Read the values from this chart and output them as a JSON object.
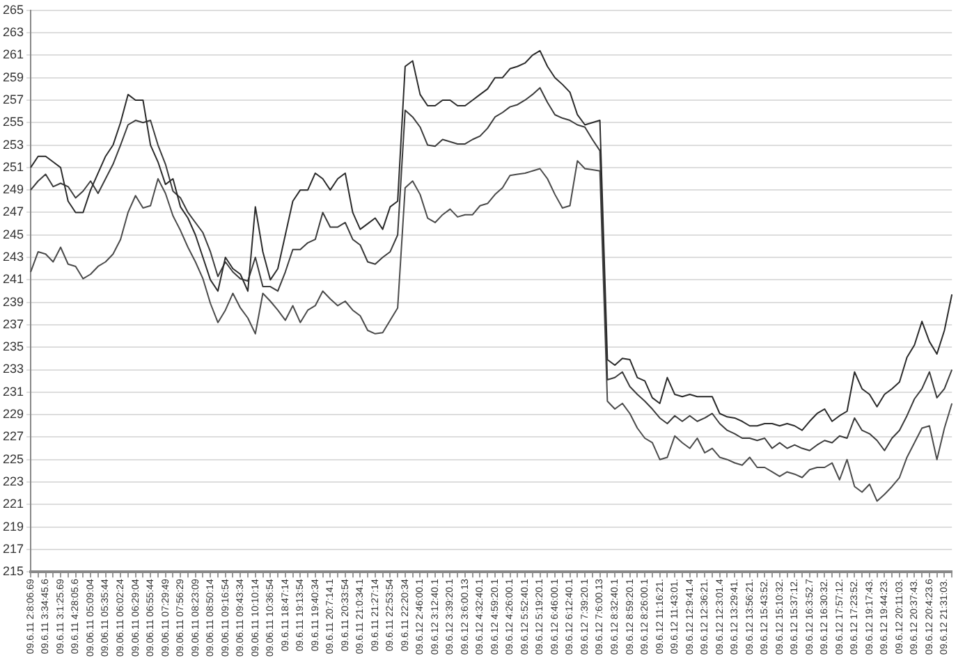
{
  "chart_data": {
    "type": "line",
    "categories": [
      "09.6.11 2:8:06.69",
      null,
      "09.6.11 3:34:45.6",
      null,
      "09.6.11 3:1:25.69",
      null,
      "09.6.11 4:28:05.6",
      null,
      "09.06.11 05:09:04",
      null,
      "09.06.11 05:35:44",
      null,
      "09.06.11 06:02:24",
      null,
      "09.06.11 06:29:04",
      null,
      "09.06.11 06:55:44",
      null,
      "09.06.11 07:29:49",
      null,
      "09.06.11 07:56:29",
      null,
      "09.06.11 08:23:09",
      null,
      "09.06.11 08:50:14",
      null,
      "09.06.11 09:16:54",
      null,
      "09.06.11 09:43:34",
      null,
      "09.06.11 10:10:14",
      null,
      "09.06.11 10:36:54",
      null,
      "09.6.11 18:47:14",
      null,
      "09.6.11 19:13:54",
      null,
      "09.6.11 19:40:34",
      null,
      "09.6.11 20:7:14.1",
      null,
      "09.6.11 20:33:54",
      null,
      "09.6.11 21:0:34.1",
      null,
      "09.6.11 21:27:14",
      null,
      "09.6.11 22:53:54",
      null,
      "09.6.11 22:20:34",
      null,
      "09.6.12 2:46:00.1",
      null,
      "09.6.12 3:12:40.1",
      null,
      "09.6.12 3:39:20.1",
      null,
      "09.6.12 3:6:00.13",
      null,
      "09.6.12 4:32:40.1",
      null,
      "09.6.12 4:59:20.1",
      null,
      "09.6.12 4:26:00.1",
      null,
      "09.6.12 5:52:40.1",
      null,
      "09.6.12 5:19:20.1",
      null,
      "09.6.12 6:46:00.1",
      null,
      "09.6.12 6:12:40.1",
      null,
      "09.6.12 7:39:20.1",
      null,
      "09.6.12 7:6:00.13",
      null,
      "09.6.12 8:32:40.1",
      null,
      "09.6.12 8:59:20.1",
      null,
      "09.6.12 8:26:00.1",
      null,
      "09.6.12 11:16:21.",
      null,
      "09.6.12 11:43:01.",
      null,
      "09.6.12 12:9:41.4",
      null,
      "09.6.12 12:36:21.",
      null,
      "09.6.12 12:3:01.4",
      null,
      "09.6.12 13:29:41.",
      null,
      "09.6.12 13:56:21.",
      null,
      "09.6.12 15:43:52.",
      null,
      "09.6.12 15:10:32.",
      null,
      "09.6.12 15:37:12.",
      null,
      "09.6.12 16:3:52.7",
      null,
      "09.6.12 16:30:32.",
      null,
      "09.6.12 17:57:12.",
      null,
      "09.6.12 17:23:52.",
      null,
      "09.6.12 19:17:43.",
      null,
      "09.6.12 19:44:23.",
      null,
      "09.6.12 20:11:03.",
      null,
      "09.6.12 20:37:43.",
      null,
      "09.6.12 20:4:23.6",
      null,
      "09.6.12 21:31:03.",
      null
    ],
    "series": [
      {
        "color": "#2a2a2a",
        "values": [
          251,
          252,
          252,
          251.5,
          251,
          248,
          247,
          247,
          249,
          250.5,
          252,
          253,
          255,
          257.5,
          257,
          257,
          253,
          251.5,
          249.5,
          250,
          247.5,
          246.5,
          245,
          243,
          241,
          240,
          243,
          242,
          241.5,
          240,
          247.5,
          243.5,
          241,
          242,
          245,
          248,
          249,
          249,
          250.5,
          250,
          249,
          250,
          250.5,
          247,
          245.5,
          246,
          246.5,
          245.5,
          247.5,
          248,
          260,
          260.5,
          257.5,
          256.5,
          256.5,
          257,
          257,
          256.5,
          256.5,
          257,
          257.5,
          258,
          259,
          259,
          259.8,
          260,
          260.3,
          261,
          261.4,
          260,
          259,
          258.4,
          257.7,
          255.7,
          254.8,
          255,
          255.2,
          233.9,
          233.4,
          234,
          233.9,
          232.3,
          232,
          230.5,
          230,
          232.3,
          230.8,
          230.6,
          230.8,
          230.6,
          230.6,
          230.6,
          229.1,
          228.8,
          228.7,
          228.4,
          228,
          228,
          228.2,
          228.2,
          228,
          228.2,
          228,
          227.6,
          228.4,
          229.1,
          229.5,
          228.4,
          228.9,
          229.3,
          232.8,
          231.3,
          230.8,
          229.7,
          230.8,
          231.3,
          231.9,
          234.1,
          235.2,
          237.3,
          235.5,
          234.4,
          236.5,
          239.7
        ]
      },
      {
        "color": "#3a3a3a",
        "values": [
          249,
          249.8,
          250.4,
          249.3,
          249.6,
          249.3,
          248.3,
          248.9,
          249.8,
          248.7,
          250,
          251.3,
          253,
          254.8,
          255.2,
          255,
          255.2,
          253,
          251.3,
          248.9,
          248.3,
          247,
          246.1,
          245.2,
          243.5,
          241.3,
          242.6,
          241.7,
          241.1,
          240.9,
          243,
          240.4,
          240.4,
          240,
          241.7,
          243.7,
          243.7,
          244.3,
          244.6,
          247,
          245.7,
          245.7,
          246.1,
          244.6,
          244.1,
          242.6,
          242.4,
          243,
          243.5,
          245,
          256.1,
          255.5,
          254.6,
          253,
          252.9,
          253.5,
          253.3,
          253.1,
          253.1,
          253.5,
          253.8,
          254.5,
          255.5,
          255.9,
          256.4,
          256.6,
          257,
          257.5,
          258.1,
          256.8,
          255.7,
          255.4,
          255.2,
          254.8,
          254.6,
          253.5,
          252.5,
          232.1,
          232.3,
          232.8,
          231.5,
          230.8,
          230.2,
          229.5,
          228.7,
          228.2,
          228.9,
          228.4,
          228.9,
          228.4,
          228.7,
          229.1,
          228.2,
          227.6,
          227.3,
          226.9,
          226.9,
          226.7,
          226.9,
          226,
          226.5,
          226,
          226.3,
          226,
          225.8,
          226.3,
          226.7,
          226.5,
          227.1,
          226.9,
          228.7,
          227.6,
          227.3,
          226.7,
          225.8,
          226.9,
          227.6,
          228.9,
          230.4,
          231.3,
          232.8,
          230.5,
          231.3,
          233
        ]
      },
      {
        "color": "#4a4a4a",
        "values": [
          241.7,
          243.5,
          243.3,
          242.6,
          243.9,
          242.4,
          242.2,
          241.1,
          241.5,
          242.2,
          242.6,
          243.3,
          244.6,
          247,
          248.5,
          247.4,
          247.6,
          250,
          248.7,
          246.7,
          245.4,
          243.9,
          242.6,
          241.1,
          238.9,
          237.2,
          238.3,
          239.8,
          238.5,
          237.6,
          236.2,
          239.8,
          239.1,
          238.3,
          237.4,
          238.7,
          237.2,
          238.3,
          238.7,
          240,
          239.3,
          238.7,
          239.1,
          238.3,
          237.8,
          236.5,
          236.2,
          236.3,
          237.4,
          238.5,
          249.2,
          249.8,
          248.6,
          246.5,
          246.1,
          246.8,
          247.3,
          246.6,
          246.8,
          246.8,
          247.6,
          247.8,
          248.6,
          249.2,
          250.3,
          250.4,
          250.5,
          250.7,
          250.9,
          250,
          248.6,
          247.4,
          247.6,
          251.6,
          250.9,
          250.8,
          250.7,
          230.2,
          229.5,
          230,
          229.1,
          227.8,
          226.9,
          226.5,
          225,
          225.2,
          227.1,
          226.5,
          226,
          226.9,
          225.6,
          226,
          225.2,
          225,
          224.7,
          224.5,
          225.2,
          224.3,
          224.3,
          223.9,
          223.5,
          223.9,
          223.7,
          223.4,
          224.1,
          224.3,
          224.3,
          224.7,
          223.2,
          225,
          222.6,
          222.1,
          222.8,
          221.3,
          221.9,
          222.6,
          223.4,
          225.2,
          226.5,
          227.8,
          228,
          225,
          227.8,
          230
        ]
      }
    ],
    "ylim": [
      215,
      265
    ],
    "yticks": [
      215,
      217,
      219,
      221,
      223,
      225,
      227,
      229,
      231,
      233,
      235,
      237,
      239,
      241,
      243,
      245,
      247,
      249,
      251,
      253,
      255,
      257,
      259,
      261,
      263,
      265
    ],
    "grid": "y",
    "legend": false,
    "marker": "none",
    "line_style": "solid"
  }
}
